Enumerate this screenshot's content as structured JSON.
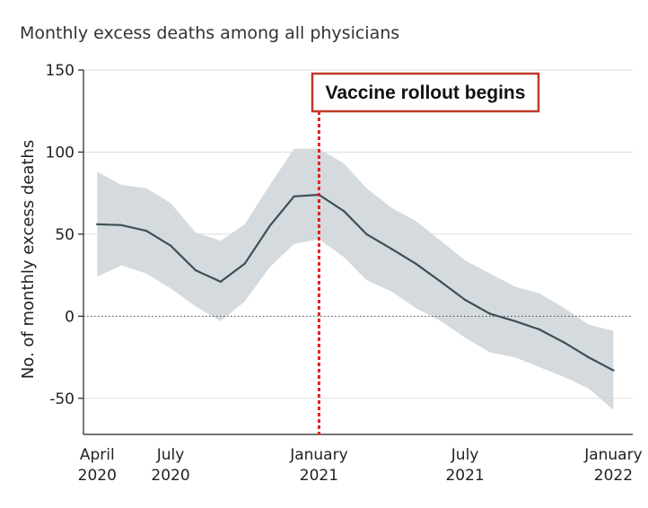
{
  "chart_data": {
    "type": "line",
    "title": "Monthly excess deaths among all physicians",
    "ylabel": "No. of monthly excess deaths",
    "xlabel": "",
    "ylim": [
      -72,
      150
    ],
    "yticks": [
      150,
      100,
      50,
      0,
      -50
    ],
    "ytick_labels": [
      "150",
      "100",
      "50",
      "0",
      "-50"
    ],
    "x_range": [
      "2020-03-15",
      "2022-01-25"
    ],
    "xticks": [
      {
        "date": "2020-04-01",
        "line1": "April",
        "line2": "2020"
      },
      {
        "date": "2020-07-01",
        "line1": "July",
        "line2": "2020"
      },
      {
        "date": "2021-01-01",
        "line1": "January",
        "line2": "2021"
      },
      {
        "date": "2021-07-01",
        "line1": "July",
        "line2": "2021"
      },
      {
        "date": "2022-01-01",
        "line1": "January",
        "line2": "2022"
      }
    ],
    "x": [
      "2020-04-01",
      "2020-05-01",
      "2020-06-01",
      "2020-07-01",
      "2020-08-01",
      "2020-09-01",
      "2020-10-01",
      "2020-11-01",
      "2020-12-01",
      "2021-01-01",
      "2021-02-01",
      "2021-03-01",
      "2021-04-01",
      "2021-05-01",
      "2021-06-01",
      "2021-07-01",
      "2021-08-01",
      "2021-09-01",
      "2021-10-01",
      "2021-11-01",
      "2021-12-01",
      "2022-01-01"
    ],
    "series": [
      {
        "estimate": [
          56,
          55.5,
          52,
          43,
          28,
          21,
          32,
          55,
          73,
          74,
          64,
          50,
          41,
          32,
          21,
          10,
          1.5,
          -3,
          -8,
          -16,
          -25,
          -33
        ],
        "lower": [
          24,
          31,
          26,
          17,
          6,
          -3,
          9,
          30,
          44,
          47,
          36,
          22,
          15,
          5,
          -3,
          -13,
          -22,
          -25,
          -31,
          -37,
          -44,
          -57
        ],
        "upper": [
          88,
          80,
          78,
          69,
          51,
          46,
          56,
          80,
          102,
          102,
          93,
          78,
          66,
          58,
          46,
          34,
          26,
          18,
          14,
          5,
          -5,
          -9
        ]
      }
    ],
    "reference_lines": [
      {
        "axis": "y",
        "value": 0,
        "style": "dotted"
      }
    ],
    "annotation": {
      "text": "Vaccine rollout begins",
      "x": "2021-01-01"
    },
    "grid": true,
    "colors": {
      "line": "#3d5057",
      "band": "#cfd6da",
      "vline": "#e02020",
      "box_border": "#c0392b",
      "grid": "#dddddd",
      "axis": "#222222"
    }
  }
}
